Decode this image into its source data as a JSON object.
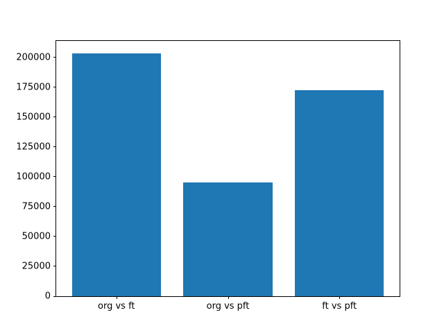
{
  "chart_data": {
    "type": "bar",
    "categories": [
      "org vs ft",
      "org vs pft",
      "ft vs pft"
    ],
    "values": [
      203500,
      95500,
      172500
    ],
    "title": "",
    "xlabel": "",
    "ylabel": "",
    "ylim": [
      0,
      213700
    ],
    "yticks": [
      0,
      25000,
      50000,
      75000,
      100000,
      125000,
      150000,
      175000,
      200000
    ],
    "ytick_labels": [
      "0",
      "25000",
      "50000",
      "75000",
      "100000",
      "125000",
      "150000",
      "175000",
      "200000"
    ],
    "bar_color": "#1f77b4",
    "grid": false,
    "legend": null
  }
}
